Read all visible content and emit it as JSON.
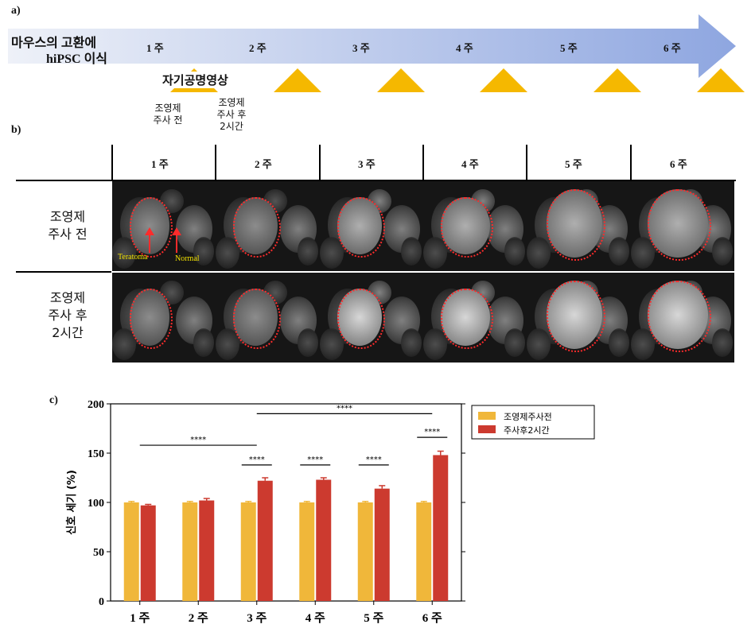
{
  "panel_a": {
    "label": "a)",
    "arrow_start_text": [
      "마우스의 고환에",
      "hiPSC 이식"
    ],
    "weeks": [
      "1 주",
      "2 주",
      "3 주",
      "4 주",
      "5 주",
      "6 주"
    ],
    "mri_label": "자기공명영상",
    "before_label": [
      "조영제",
      "주사 전"
    ],
    "after_label": [
      "조영제",
      "주사 후",
      "2시간"
    ],
    "colors": {
      "arrow_start": "#dfe6f5",
      "arrow_end": "#8ea6e0",
      "triangle": "#f5b800"
    }
  },
  "panel_b": {
    "label": "b)",
    "weeks": [
      "1 주",
      "2 주",
      "3 주",
      "4 주",
      "5 주",
      "6 주"
    ],
    "rows": [
      [
        "조영제",
        "주사 전"
      ],
      [
        "조영제",
        "주사 후",
        "2시간"
      ]
    ],
    "annotations": {
      "teratoma": "Teratoma",
      "normal": "Normal"
    },
    "colors": {
      "roi": "#ff2b2b",
      "annotation_text": "#f2e200"
    }
  },
  "panel_c": {
    "label": "c)",
    "chart_data": {
      "type": "bar",
      "categories": [
        "1 주",
        "2 주",
        "3 주",
        "4 주",
        "5 주",
        "6 주"
      ],
      "series": [
        {
          "name": "조영제주사전",
          "color": "#f0b73a",
          "values": [
            100,
            100,
            100,
            100,
            100,
            100
          ],
          "errors": [
            1,
            1,
            1,
            1,
            1,
            1
          ]
        },
        {
          "name": "주사후2시간",
          "color": "#cc3a2f",
          "values": [
            97,
            102,
            122,
            123,
            114,
            148
          ],
          "errors": [
            1,
            2,
            3,
            2,
            3,
            4
          ]
        }
      ],
      "ylabel": "신호 세기 (%)",
      "ylim": [
        0,
        200
      ],
      "yticks": [
        "0",
        "50",
        "100",
        "150",
        "200"
      ],
      "significance": [
        {
          "text": "****",
          "from": 0,
          "to": 2,
          "level": 158
        },
        {
          "text": "****",
          "from": 2,
          "to": 5,
          "level": 190
        },
        {
          "text": "****",
          "from": 2,
          "to": 2,
          "level": 138,
          "pair": true
        },
        {
          "text": "****",
          "from": 3,
          "to": 3,
          "level": 138,
          "pair": true
        },
        {
          "text": "****",
          "from": 4,
          "to": 4,
          "level": 138,
          "pair": true
        },
        {
          "text": "****",
          "from": 5,
          "to": 5,
          "level": 166,
          "pair": true
        }
      ],
      "legend_position": "top-right"
    }
  }
}
